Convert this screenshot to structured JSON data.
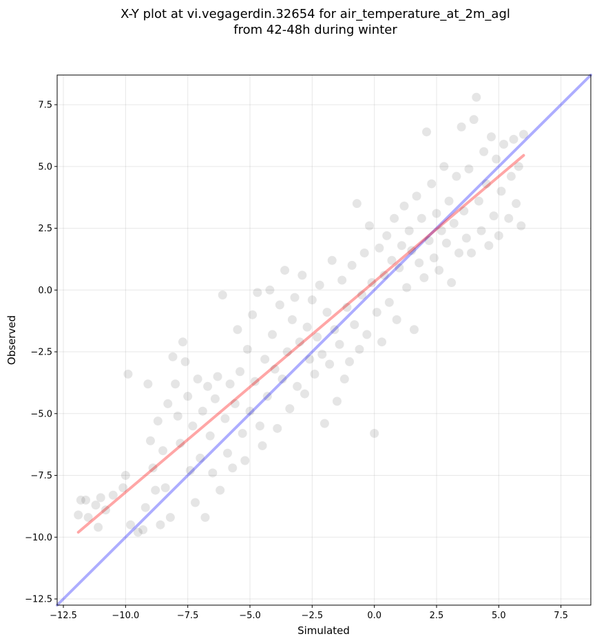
{
  "chart_data": {
    "type": "scatter",
    "title": "X-Y plot at vi.vegagerdin.32654 for air_temperature_at_2m_agl",
    "subtitle": "from 42-48h during winter",
    "xlabel": "Simulated",
    "ylabel": "Observed",
    "xlim": [
      -12.75,
      8.7
    ],
    "ylim": [
      -12.75,
      8.7
    ],
    "xticks": [
      -12.5,
      -10.0,
      -7.5,
      -5.0,
      -2.5,
      0.0,
      2.5,
      5.0,
      7.5
    ],
    "yticks": [
      -12.5,
      -10.0,
      -7.5,
      -5.0,
      -2.5,
      0.0,
      2.5,
      5.0,
      7.5
    ],
    "xtick_labels": [
      "−12.5",
      "−10.0",
      "−7.5",
      "−5.0",
      "−2.5",
      "0.0",
      "2.5",
      "5.0",
      "7.5"
    ],
    "ytick_labels": [
      "−12.5",
      "−10.0",
      "−7.5",
      "−5.0",
      "−2.5",
      "0.0",
      "2.5",
      "5.0",
      "7.5"
    ],
    "grid": true,
    "colors": {
      "points": "#000000",
      "identity_line": "#0000ff",
      "fit_line": "#ff0000"
    },
    "identity_line": {
      "x": [
        -12.75,
        8.7
      ],
      "y": [
        -12.75,
        8.7
      ]
    },
    "fit_line": {
      "x": [
        -11.9,
        6.0
      ],
      "y": [
        -9.8,
        5.45
      ]
    },
    "series": [
      {
        "values": [
          [
            -11.8,
            -8.5
          ],
          [
            -11.6,
            -8.5
          ],
          [
            -11.9,
            -9.1
          ],
          [
            -11.5,
            -9.2
          ],
          [
            -11.2,
            -8.7
          ],
          [
            -11.1,
            -9.6
          ],
          [
            -11.0,
            -8.4
          ],
          [
            -10.8,
            -8.9
          ],
          [
            -10.5,
            -8.3
          ],
          [
            -10.1,
            -8.0
          ],
          [
            -10.0,
            -7.5
          ],
          [
            -9.9,
            -3.4
          ],
          [
            -9.8,
            -9.5
          ],
          [
            -9.5,
            -9.8
          ],
          [
            -9.3,
            -9.7
          ],
          [
            -9.2,
            -8.8
          ],
          [
            -9.1,
            -3.8
          ],
          [
            -9.0,
            -6.1
          ],
          [
            -8.9,
            -7.2
          ],
          [
            -8.8,
            -8.1
          ],
          [
            -8.7,
            -5.3
          ],
          [
            -8.6,
            -9.5
          ],
          [
            -8.5,
            -6.5
          ],
          [
            -8.4,
            -8.0
          ],
          [
            -8.3,
            -4.6
          ],
          [
            -8.2,
            -9.2
          ],
          [
            -8.1,
            -2.7
          ],
          [
            -8.0,
            -3.8
          ],
          [
            -7.9,
            -5.1
          ],
          [
            -7.8,
            -6.2
          ],
          [
            -7.7,
            -2.1
          ],
          [
            -7.6,
            -2.9
          ],
          [
            -7.5,
            -4.3
          ],
          [
            -7.4,
            -7.3
          ],
          [
            -7.3,
            -5.5
          ],
          [
            -7.2,
            -8.6
          ],
          [
            -7.1,
            -3.6
          ],
          [
            -7.0,
            -6.8
          ],
          [
            -6.9,
            -4.9
          ],
          [
            -6.8,
            -9.2
          ],
          [
            -6.7,
            -3.9
          ],
          [
            -6.6,
            -5.9
          ],
          [
            -6.5,
            -7.4
          ],
          [
            -6.4,
            -4.4
          ],
          [
            -6.3,
            -3.5
          ],
          [
            -6.2,
            -8.1
          ],
          [
            -6.1,
            -0.2
          ],
          [
            -6.0,
            -5.2
          ],
          [
            -5.9,
            -6.6
          ],
          [
            -5.8,
            -3.8
          ],
          [
            -5.7,
            -7.2
          ],
          [
            -5.6,
            -4.6
          ],
          [
            -5.5,
            -1.6
          ],
          [
            -5.4,
            -3.3
          ],
          [
            -5.3,
            -5.8
          ],
          [
            -5.2,
            -6.9
          ],
          [
            -5.1,
            -2.4
          ],
          [
            -5.0,
            -4.9
          ],
          [
            -4.9,
            -1.0
          ],
          [
            -4.8,
            -3.7
          ],
          [
            -4.7,
            -0.1
          ],
          [
            -4.6,
            -5.5
          ],
          [
            -4.5,
            -6.3
          ],
          [
            -4.4,
            -2.8
          ],
          [
            -4.3,
            -4.3
          ],
          [
            -4.2,
            0.0
          ],
          [
            -4.1,
            -1.8
          ],
          [
            -4.0,
            -3.2
          ],
          [
            -3.9,
            -5.6
          ],
          [
            -3.8,
            -0.6
          ],
          [
            -3.7,
            -3.6
          ],
          [
            -3.6,
            0.8
          ],
          [
            -3.5,
            -2.5
          ],
          [
            -3.4,
            -4.8
          ],
          [
            -3.3,
            -1.2
          ],
          [
            -3.2,
            -0.3
          ],
          [
            -3.1,
            -3.9
          ],
          [
            -3.0,
            -2.1
          ],
          [
            -2.9,
            0.6
          ],
          [
            -2.8,
            -4.2
          ],
          [
            -2.7,
            -1.5
          ],
          [
            -2.6,
            -2.8
          ],
          [
            -2.5,
            -0.4
          ],
          [
            -2.4,
            -3.4
          ],
          [
            -2.3,
            -1.9
          ],
          [
            -2.2,
            0.2
          ],
          [
            -2.1,
            -2.6
          ],
          [
            -2.0,
            -5.4
          ],
          [
            -1.9,
            -0.9
          ],
          [
            -1.8,
            -3.0
          ],
          [
            -1.7,
            1.2
          ],
          [
            -1.6,
            -1.6
          ],
          [
            -1.5,
            -4.5
          ],
          [
            -1.4,
            -2.2
          ],
          [
            -1.3,
            0.4
          ],
          [
            -1.2,
            -3.6
          ],
          [
            -1.1,
            -0.7
          ],
          [
            -1.0,
            -2.9
          ],
          [
            -0.9,
            1.0
          ],
          [
            -0.8,
            -1.4
          ],
          [
            -0.7,
            3.5
          ],
          [
            -0.6,
            -2.4
          ],
          [
            -0.5,
            -0.2
          ],
          [
            -0.4,
            1.5
          ],
          [
            -0.3,
            -1.8
          ],
          [
            -0.2,
            2.6
          ],
          [
            -0.1,
            0.3
          ],
          [
            0.0,
            -5.8
          ],
          [
            0.1,
            -0.9
          ],
          [
            0.2,
            1.7
          ],
          [
            0.3,
            -2.1
          ],
          [
            0.4,
            0.6
          ],
          [
            0.5,
            2.2
          ],
          [
            0.6,
            -0.5
          ],
          [
            0.7,
            1.2
          ],
          [
            0.8,
            2.9
          ],
          [
            0.9,
            -1.2
          ],
          [
            1.0,
            0.9
          ],
          [
            1.1,
            1.8
          ],
          [
            1.2,
            3.4
          ],
          [
            1.3,
            0.1
          ],
          [
            1.4,
            2.4
          ],
          [
            1.5,
            1.6
          ],
          [
            1.6,
            -1.6
          ],
          [
            1.7,
            3.8
          ],
          [
            1.8,
            1.1
          ],
          [
            1.9,
            2.9
          ],
          [
            2.0,
            0.5
          ],
          [
            2.1,
            6.4
          ],
          [
            2.2,
            2.0
          ],
          [
            2.3,
            4.3
          ],
          [
            2.4,
            1.3
          ],
          [
            2.5,
            3.1
          ],
          [
            2.6,
            0.8
          ],
          [
            2.7,
            2.4
          ],
          [
            2.8,
            5.0
          ],
          [
            2.9,
            1.9
          ],
          [
            3.0,
            3.6
          ],
          [
            3.1,
            0.3
          ],
          [
            3.2,
            2.7
          ],
          [
            3.3,
            4.6
          ],
          [
            3.4,
            1.5
          ],
          [
            3.5,
            6.6
          ],
          [
            3.6,
            3.2
          ],
          [
            3.7,
            2.1
          ],
          [
            3.8,
            4.9
          ],
          [
            3.9,
            1.5
          ],
          [
            4.0,
            6.9
          ],
          [
            4.1,
            7.8
          ],
          [
            4.2,
            3.6
          ],
          [
            4.3,
            2.4
          ],
          [
            4.4,
            5.6
          ],
          [
            4.5,
            4.3
          ],
          [
            4.6,
            1.8
          ],
          [
            4.7,
            6.2
          ],
          [
            4.8,
            3.0
          ],
          [
            4.9,
            5.3
          ],
          [
            5.0,
            2.2
          ],
          [
            5.1,
            4.0
          ],
          [
            5.2,
            5.9
          ],
          [
            5.4,
            2.9
          ],
          [
            5.5,
            4.6
          ],
          [
            5.6,
            6.1
          ],
          [
            5.7,
            3.5
          ],
          [
            5.8,
            5.0
          ],
          [
            5.9,
            2.6
          ],
          [
            6.0,
            6.3
          ]
        ]
      }
    ]
  }
}
